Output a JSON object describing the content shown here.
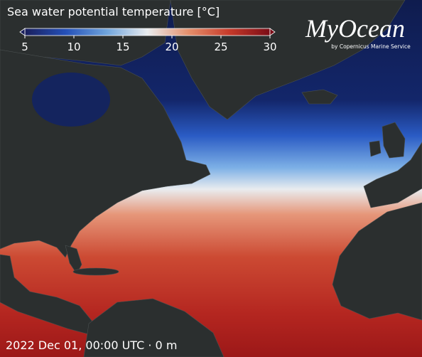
{
  "title": "Sea water potential temperature [°C]",
  "colorbar": {
    "lim": [
      5,
      30
    ],
    "ticks": [
      5,
      10,
      15,
      20,
      25,
      30
    ],
    "colors": [
      "#1a1f5c",
      "#2450b8",
      "#6fa4dc",
      "#e9ecef",
      "#e4906c",
      "#c63a2a",
      "#7a0c16"
    ]
  },
  "logo": {
    "title": "MyOcean",
    "subtitle": "by Copernicus Marine Service"
  },
  "footer": "2022 Dec 01, 00:00 UTC · 0 m"
}
